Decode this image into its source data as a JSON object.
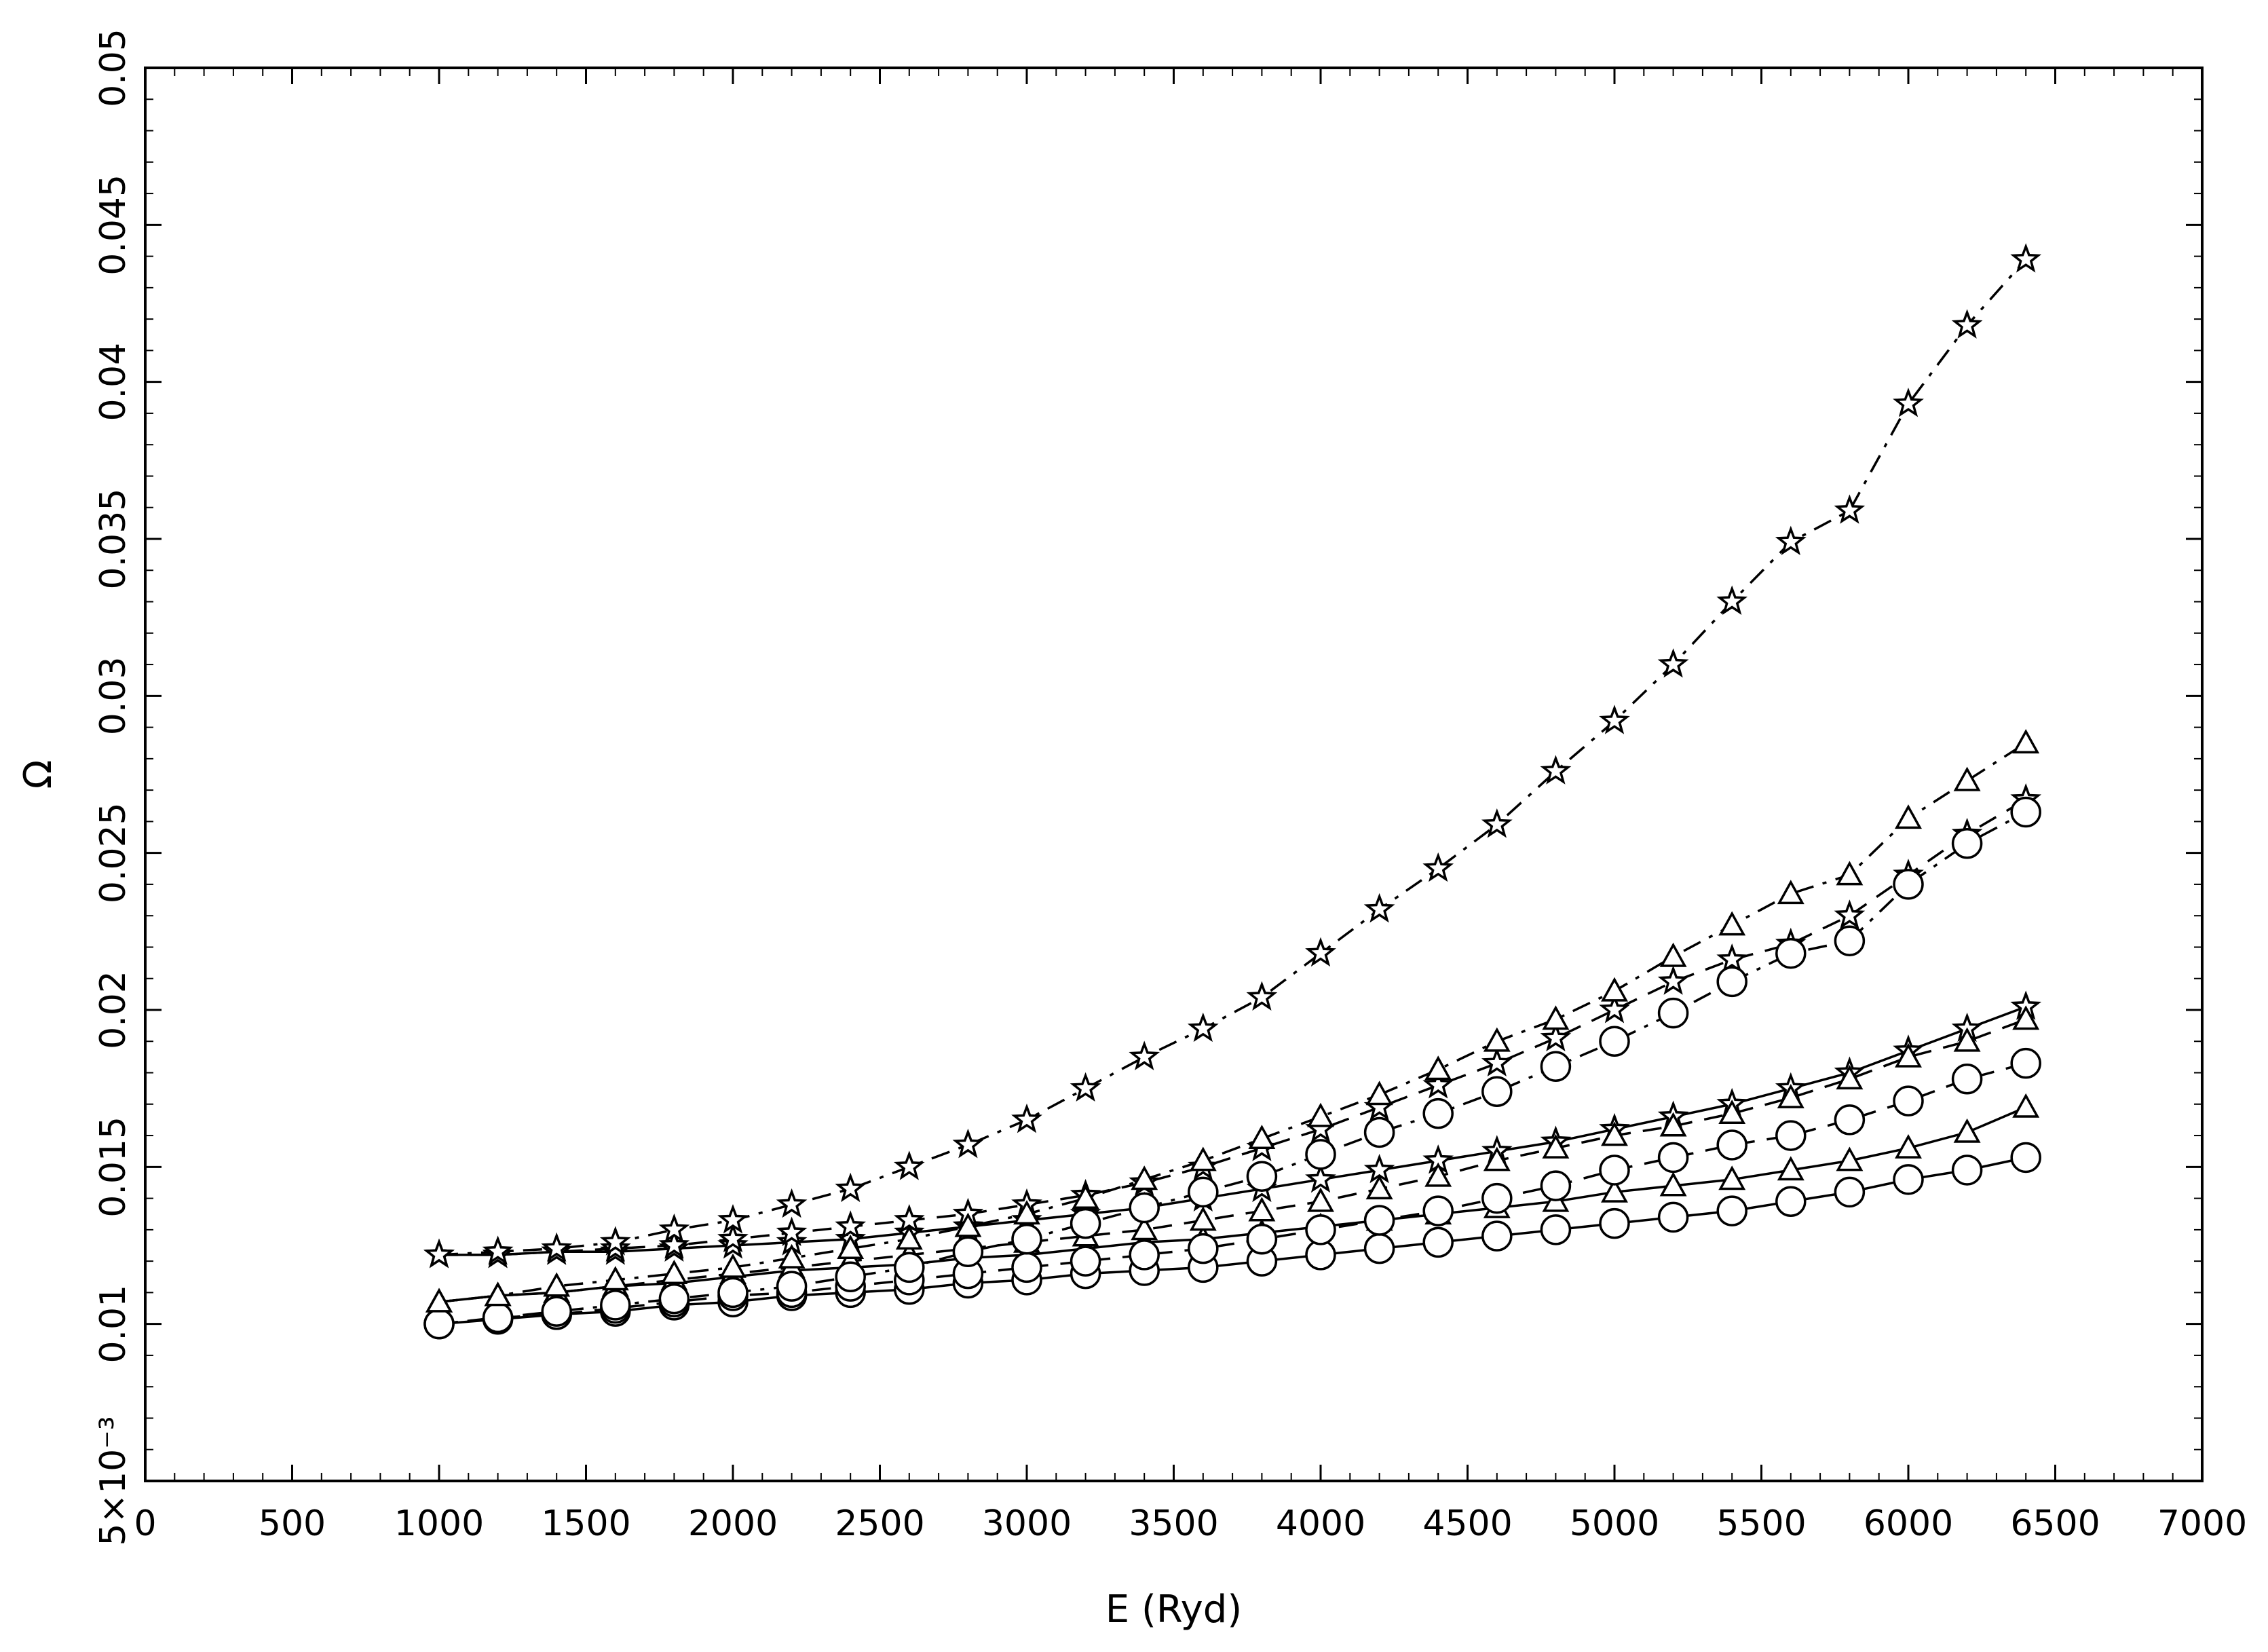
{
  "chart_data": {
    "type": "line",
    "title": "",
    "xlabel": "E (Ryd)",
    "ylabel": "Ω",
    "xlim": [
      0,
      7000
    ],
    "ylim": [
      0.005,
      0.05
    ],
    "grid": false,
    "x_ticks": [
      "0",
      "500",
      "1000",
      "1500",
      "2000",
      "2500",
      "3000",
      "3500",
      "4000",
      "4500",
      "5000",
      "5500",
      "6000",
      "6500",
      "7000"
    ],
    "y_ticks": [
      {
        "value": 0.005,
        "label": "5×10⁻³"
      },
      {
        "value": 0.01,
        "label": "0.01"
      },
      {
        "value": 0.015,
        "label": "0.015"
      },
      {
        "value": 0.02,
        "label": "0.02"
      },
      {
        "value": 0.025,
        "label": "0.025"
      },
      {
        "value": 0.03,
        "label": "0.03"
      },
      {
        "value": 0.035,
        "label": "0.035"
      },
      {
        "value": 0.04,
        "label": "0.04"
      },
      {
        "value": 0.045,
        "label": "0.045"
      },
      {
        "value": 0.05,
        "label": "0.05"
      }
    ],
    "x": [
      1000,
      1200,
      1400,
      1600,
      1800,
      2000,
      2200,
      2400,
      2600,
      2800,
      3000,
      3200,
      3400,
      3600,
      3800,
      4000,
      4200,
      4400,
      4600,
      4800,
      5000,
      5200,
      5400,
      5600,
      5800,
      6000,
      6200,
      6400
    ],
    "series": [
      {
        "marker": "circle",
        "line": "solid",
        "values": [
          0.01,
          0.01015,
          0.0103,
          0.0104,
          0.0106,
          0.0107,
          0.0109,
          0.011,
          0.0111,
          0.0113,
          0.0114,
          0.0116,
          0.0117,
          0.0118,
          0.012,
          0.0122,
          0.0124,
          0.0126,
          0.0128,
          0.013,
          0.0132,
          0.0134,
          0.0136,
          0.0139,
          0.0142,
          0.0146,
          0.0149,
          0.0153
        ]
      },
      {
        "marker": "triangle",
        "line": "solid",
        "values": [
          0.0107,
          0.0109,
          0.011,
          0.0112,
          0.0113,
          0.0115,
          0.0117,
          0.0118,
          0.0119,
          0.0121,
          0.0122,
          0.0124,
          0.0126,
          0.0127,
          0.0129,
          0.0131,
          0.0133,
          0.0135,
          0.0137,
          0.0139,
          0.0142,
          0.0144,
          0.0146,
          0.0149,
          0.0152,
          0.0156,
          0.0161,
          0.0169
        ]
      },
      {
        "marker": "star",
        "line": "solid",
        "values": [
          0.0122,
          0.0122,
          0.0123,
          0.0123,
          0.0124,
          0.0125,
          0.0126,
          0.0127,
          0.0129,
          0.0131,
          0.0133,
          0.0135,
          0.0137,
          0.014,
          0.0143,
          0.0146,
          0.0149,
          0.0152,
          0.0155,
          0.0158,
          0.0162,
          0.0166,
          0.017,
          0.0175,
          0.018,
          0.0187,
          0.0194,
          0.0201
        ]
      },
      {
        "marker": "circle",
        "line": "dashed",
        "values": [
          0.01,
          0.0102,
          0.0103,
          0.0105,
          0.0107,
          0.0109,
          0.011,
          0.0112,
          0.0114,
          0.0116,
          0.0118,
          0.012,
          0.0122,
          0.0124,
          0.0127,
          0.013,
          0.0133,
          0.0136,
          0.014,
          0.0144,
          0.0149,
          0.0153,
          0.0157,
          0.016,
          0.0165,
          0.0171,
          0.0178,
          0.0183
        ]
      },
      {
        "marker": "triangle",
        "line": "dashed",
        "values": [
          0.0107,
          0.0109,
          0.011,
          0.0112,
          0.0114,
          0.0116,
          0.0118,
          0.012,
          0.0122,
          0.0124,
          0.0126,
          0.0128,
          0.013,
          0.0133,
          0.0136,
          0.0139,
          0.0143,
          0.0147,
          0.0152,
          0.0156,
          0.016,
          0.0163,
          0.0167,
          0.0172,
          0.0178,
          0.0185,
          0.019,
          0.0197
        ]
      },
      {
        "marker": "star",
        "line": "dashed",
        "values": [
          0.0122,
          0.0122,
          0.0123,
          0.0124,
          0.0125,
          0.0127,
          0.0129,
          0.0131,
          0.0133,
          0.0135,
          0.0138,
          0.0141,
          0.0145,
          0.015,
          0.0156,
          0.0162,
          0.0169,
          0.0176,
          0.0183,
          0.0191,
          0.02,
          0.0209,
          0.0216,
          0.0221,
          0.023,
          0.0243,
          0.0256,
          0.0267
        ]
      },
      {
        "marker": "circle",
        "line": "dashdot",
        "values": [
          0.01,
          0.0102,
          0.0104,
          0.0106,
          0.0108,
          0.011,
          0.0112,
          0.0115,
          0.0118,
          0.0123,
          0.0127,
          0.0132,
          0.0137,
          0.0142,
          0.0147,
          0.0154,
          0.0161,
          0.0167,
          0.0174,
          0.0182,
          0.019,
          0.0199,
          0.0209,
          0.0218,
          0.0222,
          0.024,
          0.0253,
          0.0263
        ]
      },
      {
        "marker": "triangle",
        "line": "dashdot",
        "values": [
          0.0107,
          0.0109,
          0.0112,
          0.0114,
          0.0116,
          0.0118,
          0.0121,
          0.0124,
          0.0127,
          0.0131,
          0.0135,
          0.014,
          0.0146,
          0.0152,
          0.0159,
          0.0166,
          0.0173,
          0.0181,
          0.019,
          0.0197,
          0.0206,
          0.0217,
          0.0227,
          0.0237,
          0.0243,
          0.0261,
          0.0273,
          0.0285
        ]
      },
      {
        "marker": "star",
        "line": "dashdot",
        "values": [
          0.0122,
          0.0123,
          0.0124,
          0.0126,
          0.013,
          0.0133,
          0.0138,
          0.0143,
          0.015,
          0.0157,
          0.0165,
          0.0175,
          0.0185,
          0.0194,
          0.0204,
          0.0218,
          0.0232,
          0.0245,
          0.0259,
          0.0276,
          0.0292,
          0.031,
          0.033,
          0.0349,
          0.0359,
          0.0393,
          0.0418,
          0.0439
        ]
      }
    ]
  }
}
